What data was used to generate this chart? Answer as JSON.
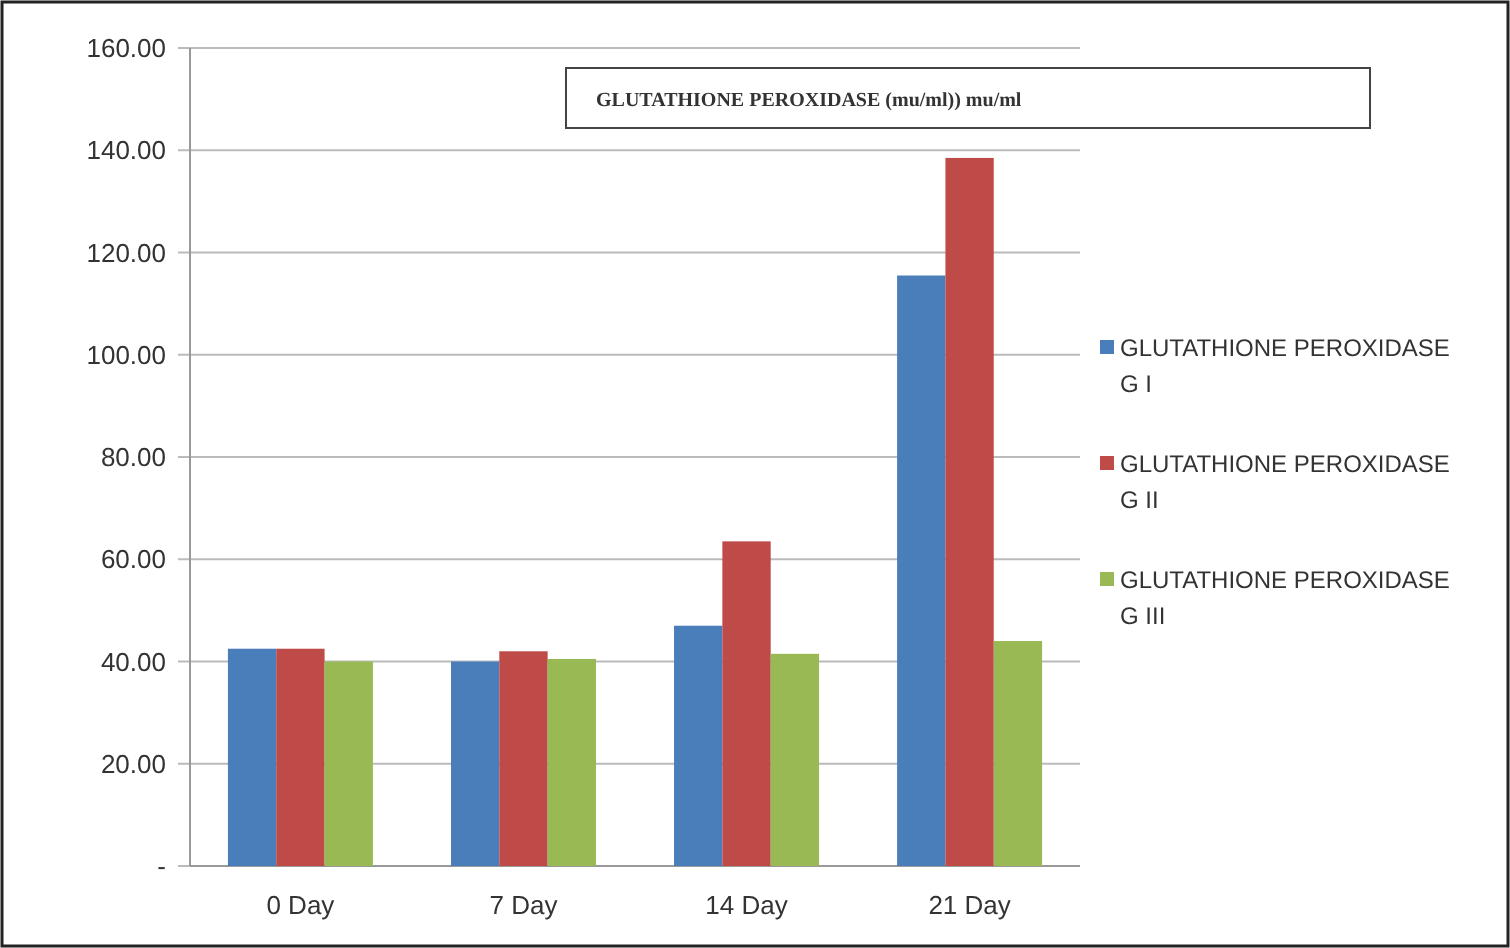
{
  "chart_data": {
    "type": "bar",
    "title": "GLUTATHIONE PEROXIDASE (mu/ml)) mu/ml",
    "categories": [
      "0 Day",
      "7 Day",
      "14 Day",
      "21 Day"
    ],
    "series": [
      {
        "name": "GLUTATHIONE PEROXIDASE G I",
        "color": "#4a7ebb",
        "values": [
          42.5,
          40,
          47,
          115.5
        ]
      },
      {
        "name": "GLUTATHIONE PEROXIDASE G II",
        "color": "#be4b48",
        "values": [
          42.5,
          42,
          63.5,
          138.5
        ]
      },
      {
        "name": "GLUTATHIONE PEROXIDASE G III",
        "color": "#98b954",
        "values": [
          40,
          40.5,
          41.5,
          44
        ]
      }
    ],
    "ylim": [
      0,
      160
    ],
    "yticks": [
      {
        "value": 0,
        "label": "-"
      },
      {
        "value": 20,
        "label": "20.00"
      },
      {
        "value": 40,
        "label": "40.00"
      },
      {
        "value": 60,
        "label": "60.00"
      },
      {
        "value": 80,
        "label": "80.00"
      },
      {
        "value": 100,
        "label": "100.00"
      },
      {
        "value": 120,
        "label": "120.00"
      },
      {
        "value": 140,
        "label": "140.00"
      },
      {
        "value": 160,
        "label": "160.00"
      }
    ],
    "grid": "y",
    "legend": "right"
  }
}
